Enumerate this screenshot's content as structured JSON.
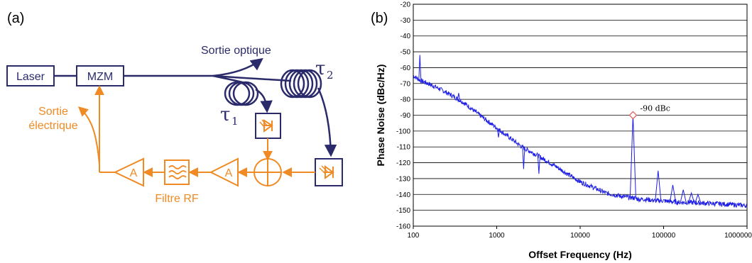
{
  "panel_a": {
    "label": "(a)",
    "laser": "Laser",
    "mzm": "MZM",
    "sortie_optique": "Sortie optique",
    "sortie_electrique_1": "Sortie",
    "sortie_electrique_2": "électrique",
    "filtre": "Filtre RF",
    "amp1": "A",
    "amp2": "A",
    "tau1": "τ",
    "tau1_sub": "1",
    "tau2": "τ",
    "tau2_sub": "2"
  },
  "panel_b": {
    "label": "(b)"
  },
  "colors": {
    "optical": "#2b2a6b",
    "electrical": "#f08a24",
    "trace": "#1f1fe6",
    "marker": "#e05050"
  },
  "chart_data": {
    "type": "line",
    "xlabel": "Offset Frequency (Hz)",
    "ylabel": "Phase Noise (dBc/Hz)",
    "xscale": "log",
    "xlim": [
      100,
      1000000
    ],
    "ylim": [
      -160,
      -20
    ],
    "xticks": [
      "100",
      "1000",
      "10000",
      "100000",
      "1000000"
    ],
    "yticks": [
      "-20",
      "-30",
      "-40",
      "-50",
      "-60",
      "-70",
      "-80",
      "-90",
      "-100",
      "-110",
      "-120",
      "-130",
      "-140",
      "-150",
      "-160"
    ],
    "grid": "horizontal",
    "series": [
      {
        "x": [
          100,
          120,
          150,
          200,
          300,
          400,
          500,
          700,
          1000,
          1500,
          2000,
          3000,
          5000,
          7000,
          10000,
          15000,
          20000,
          30000,
          40000,
          43000,
          50000,
          60000,
          80000,
          100000,
          150000,
          200000,
          300000,
          500000,
          700000,
          1000000
        ],
        "y": [
          -65,
          -68,
          -70,
          -73,
          -78,
          -82,
          -86,
          -92,
          -98,
          -105,
          -110,
          -115,
          -122,
          -127,
          -132,
          -136,
          -139,
          -141,
          -142,
          -142,
          -143,
          -143,
          -144,
          -144,
          -145,
          -145,
          -145.5,
          -146,
          -146.5,
          -147
        ]
      }
    ],
    "spurs": [
      {
        "x": 120,
        "y": -52
      },
      {
        "x": 350,
        "y": -76
      },
      {
        "x": 1050,
        "y": -104
      },
      {
        "x": 2100,
        "y": -124
      },
      {
        "x": 3200,
        "y": -127
      },
      {
        "x": 43000,
        "y": -90
      },
      {
        "x": 86000,
        "y": -125
      },
      {
        "x": 129000,
        "y": -134
      },
      {
        "x": 172000,
        "y": -137
      },
      {
        "x": 215000,
        "y": -139
      },
      {
        "x": 258000,
        "y": -140
      }
    ],
    "annotations": [
      {
        "text": "-90 dBc",
        "x": 43000,
        "y": -90
      }
    ]
  }
}
